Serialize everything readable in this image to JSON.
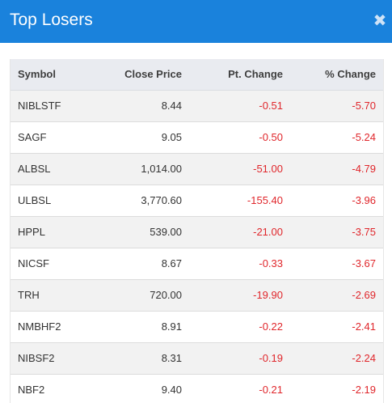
{
  "header": {
    "title": "Top Losers",
    "close_icon": "close-icon"
  },
  "table": {
    "columns": [
      "Symbol",
      "Close Price",
      "Pt. Change",
      "% Change"
    ],
    "rows": [
      [
        "NIBLSTF",
        "8.44",
        "-0.51",
        "-5.70"
      ],
      [
        "SAGF",
        "9.05",
        "-0.50",
        "-5.24"
      ],
      [
        "ALBSL",
        "1,014.00",
        "-51.00",
        "-4.79"
      ],
      [
        "ULBSL",
        "3,770.60",
        "-155.40",
        "-3.96"
      ],
      [
        "HPPL",
        "539.00",
        "-21.00",
        "-3.75"
      ],
      [
        "NICSF",
        "8.67",
        "-0.33",
        "-3.67"
      ],
      [
        "TRH",
        "720.00",
        "-19.90",
        "-2.69"
      ],
      [
        "NMBHF2",
        "8.91",
        "-0.22",
        "-2.41"
      ],
      [
        "NIBSF2",
        "8.31",
        "-0.19",
        "-2.24"
      ],
      [
        "NBF2",
        "9.40",
        "-0.21",
        "-2.19"
      ]
    ]
  },
  "colors": {
    "header_bg": "#1a82dc",
    "negative": "#e0262b",
    "row_alt": "#f2f2f2"
  }
}
